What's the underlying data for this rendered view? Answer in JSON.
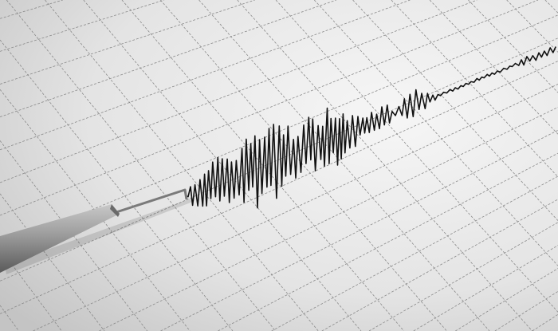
{
  "scene": {
    "subject": "seismograph",
    "colors": {
      "paper_light": "#f4f4f4",
      "paper_dark": "#c9c9c9",
      "grid": "#8a8a8a",
      "trace": "#111111",
      "needle": "#9a9a9a"
    }
  }
}
